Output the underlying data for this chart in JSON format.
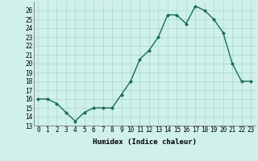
{
  "x": [
    0,
    1,
    2,
    3,
    4,
    5,
    6,
    7,
    8,
    9,
    10,
    11,
    12,
    13,
    14,
    15,
    16,
    17,
    18,
    19,
    20,
    21,
    22,
    23
  ],
  "y": [
    16,
    16,
    15.5,
    14.5,
    13.5,
    14.5,
    15,
    15,
    15,
    16.5,
    18,
    20.5,
    21.5,
    23,
    25.5,
    25.5,
    24.5,
    26.5,
    26,
    25,
    23.5,
    20,
    18,
    18
  ],
  "line_color": "#1a6b5a",
  "marker": "D",
  "marker_size": 2.0,
  "line_width": 1.0,
  "bg_color": "#cff0eb",
  "grid_color": "#a8d8d0",
  "xlabel": "Humidex (Indice chaleur)",
  "ylabel": "",
  "xlim": [
    -0.5,
    23.5
  ],
  "ylim": [
    13,
    27
  ],
  "yticks": [
    13,
    14,
    15,
    16,
    17,
    18,
    19,
    20,
    21,
    22,
    23,
    24,
    25,
    26
  ],
  "xtick_labels": [
    "0",
    "1",
    "2",
    "3",
    "4",
    "5",
    "6",
    "7",
    "8",
    "9",
    "10",
    "11",
    "12",
    "13",
    "14",
    "15",
    "16",
    "17",
    "18",
    "19",
    "20",
    "21",
    "22",
    "23"
  ],
  "label_fontsize": 6.5,
  "tick_fontsize": 5.5
}
